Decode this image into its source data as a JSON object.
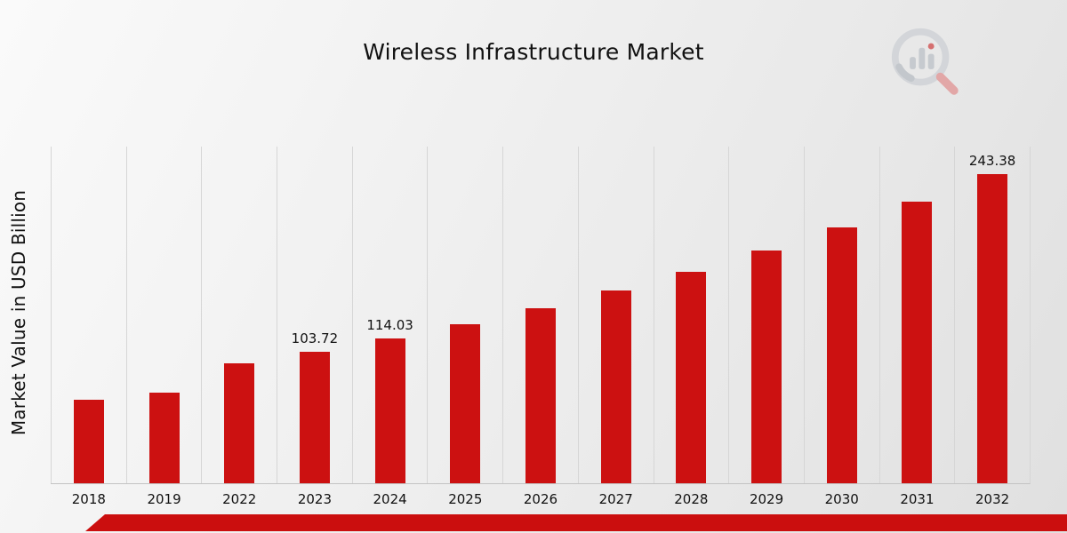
{
  "header": {
    "title": "Wireless Infrastructure Market"
  },
  "branding": {
    "logo_icon": "magnifier-bar-chart-logo",
    "logo_gray": "#d2d5d9",
    "logo_bar_gray": "#c5c9ce",
    "logo_accent": "#e2a4a4"
  },
  "footer": {
    "stripe_color": "#cb0e0e"
  },
  "chart_data": {
    "type": "bar",
    "title": "Wireless Infrastructure Market",
    "xlabel": "",
    "ylabel": "Market Value in USD Billion",
    "categories": [
      "2018",
      "2019",
      "2022",
      "2023",
      "2024",
      "2025",
      "2026",
      "2027",
      "2028",
      "2029",
      "2030",
      "2031",
      "2032"
    ],
    "values": [
      65.4,
      71.0,
      94.3,
      103.72,
      114.03,
      125.4,
      137.8,
      151.5,
      166.6,
      183.2,
      201.4,
      221.4,
      243.38
    ],
    "data_labels": [
      "",
      "",
      "",
      "103.72",
      "114.03",
      "",
      "",
      "",
      "",
      "",
      "",
      "",
      "243.38"
    ],
    "ylim": [
      0,
      265
    ],
    "bar_color": "#cc1111",
    "grid": "vertical-only",
    "legend": "none"
  }
}
